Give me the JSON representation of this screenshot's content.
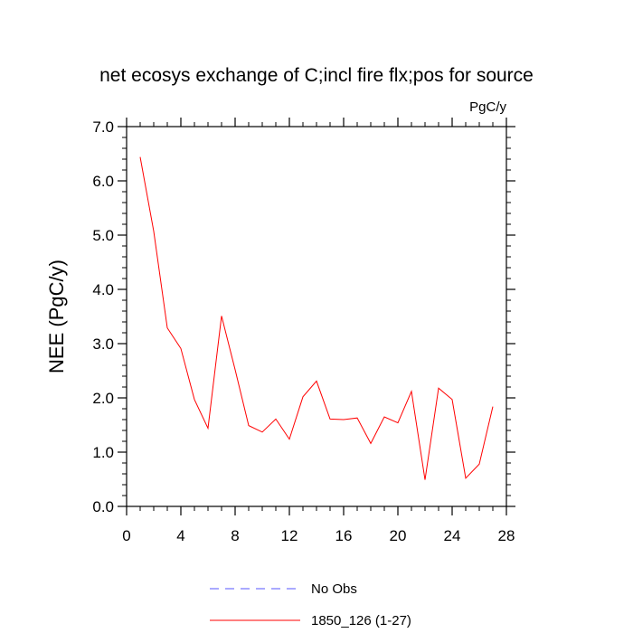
{
  "chart_data": {
    "type": "line",
    "title": "net ecosys exchange of C;incl fire flx;pos for source",
    "units_label": "PgC/y",
    "ylabel": "NEE  (PgC/y)",
    "xlabel": "",
    "xlim": [
      0,
      28
    ],
    "ylim": [
      0,
      7
    ],
    "x_ticks": [
      0,
      4,
      8,
      12,
      16,
      20,
      24,
      28
    ],
    "x_tick_labels": [
      "0",
      "4",
      "8",
      "12",
      "16",
      "20",
      "24",
      "28"
    ],
    "y_ticks": [
      0,
      1,
      2,
      3,
      4,
      5,
      6,
      7
    ],
    "y_tick_labels": [
      "0.0",
      "1.0",
      "2.0",
      "3.0",
      "4.0",
      "5.0",
      "6.0",
      "7.0"
    ],
    "grid": false,
    "legend_position": "bottom",
    "series": [
      {
        "name": "1850_126 (1-27)",
        "color": "#ff0000",
        "dash": "solid",
        "x": [
          1,
          2,
          3,
          4,
          5,
          6,
          7,
          8,
          9,
          10,
          11,
          12,
          13,
          14,
          15,
          16,
          17,
          18,
          19,
          20,
          21,
          22,
          23,
          24,
          25,
          26,
          27
        ],
        "values": [
          6.44,
          5.07,
          3.29,
          2.91,
          1.97,
          1.44,
          3.51,
          2.52,
          1.49,
          1.37,
          1.61,
          1.24,
          2.02,
          2.31,
          1.61,
          1.6,
          1.63,
          1.16,
          1.65,
          1.54,
          2.12,
          0.49,
          2.18,
          1.97,
          0.52,
          0.78,
          1.84
        ]
      }
    ],
    "legend": [
      {
        "label": "No Obs",
        "color": "#5555ff",
        "dash": "dashed"
      },
      {
        "label": "1850_126 (1-27)",
        "color": "#ff0000",
        "dash": "solid"
      }
    ]
  }
}
